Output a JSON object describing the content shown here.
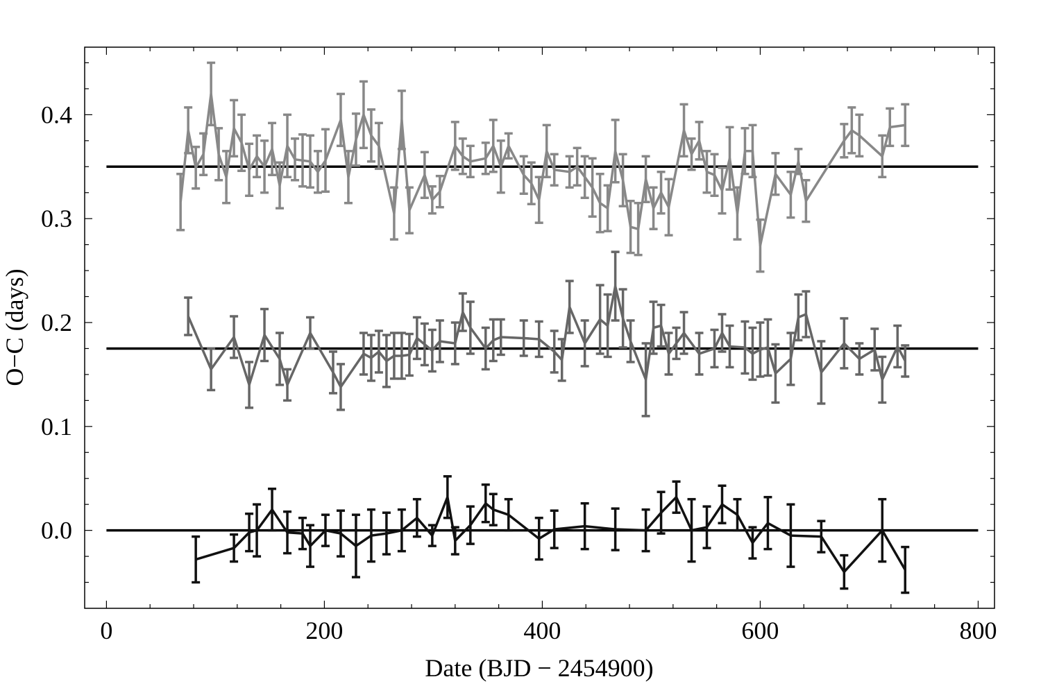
{
  "chart_data": {
    "type": "line",
    "title": "",
    "xlabel": "Date (BJD − 2454900)",
    "ylabel": "O−C (days)",
    "xlim": [
      -20,
      815
    ],
    "ylim": [
      -0.075,
      0.465
    ],
    "xticks": [
      0,
      200,
      400,
      600,
      800
    ],
    "xtick_labels": [
      "0",
      "200",
      "400",
      "600",
      "800"
    ],
    "yticks": [
      0.0,
      0.1,
      0.2,
      0.3,
      0.4
    ],
    "ytick_labels": [
      "0.0",
      "0.1",
      "0.2",
      "0.3",
      "0.4"
    ],
    "grid": false,
    "legend": "none",
    "reference_lines": [
      0.0,
      0.175,
      0.35
    ],
    "series": [
      {
        "color": "#888888",
        "x": [
          68,
          75,
          82,
          89,
          96,
          103,
          110,
          117,
          124,
          131,
          138,
          145,
          152,
          159,
          166,
          173,
          180,
          187,
          194,
          201,
          215,
          222,
          229,
          236,
          243,
          250,
          264,
          271,
          278,
          292,
          299,
          306,
          320,
          327,
          334,
          348,
          355,
          362,
          369,
          383,
          390,
          397,
          404,
          411,
          425,
          432,
          439,
          446,
          453,
          460,
          467,
          474,
          481,
          488,
          495,
          502,
          509,
          516,
          530,
          537,
          544,
          551,
          558,
          565,
          572,
          579,
          586,
          593,
          600,
          614,
          628,
          635,
          642,
          677,
          684,
          691,
          712,
          719,
          733
        ],
        "y": [
          0.316,
          0.385,
          0.349,
          0.362,
          0.42,
          0.362,
          0.34,
          0.387,
          0.373,
          0.347,
          0.36,
          0.35,
          0.367,
          0.332,
          0.37,
          0.357,
          0.356,
          0.355,
          0.345,
          0.356,
          0.395,
          0.34,
          0.376,
          0.4,
          0.38,
          0.37,
          0.305,
          0.395,
          0.308,
          0.342,
          0.318,
          0.326,
          0.37,
          0.36,
          0.355,
          0.358,
          0.37,
          0.35,
          0.37,
          0.342,
          0.334,
          0.318,
          0.365,
          0.347,
          0.345,
          0.35,
          0.34,
          0.33,
          0.315,
          0.31,
          0.365,
          0.337,
          0.292,
          0.29,
          0.338,
          0.31,
          0.325,
          0.311,
          0.385,
          0.362,
          0.375,
          0.345,
          0.342,
          0.327,
          0.358,
          0.305,
          0.365,
          0.365,
          0.274,
          0.343,
          0.323,
          0.355,
          0.317,
          0.375,
          0.385,
          0.38,
          0.36,
          0.388,
          0.39
        ],
        "err": [
          0.027,
          0.022,
          0.02,
          0.02,
          0.03,
          0.025,
          0.025,
          0.027,
          0.027,
          0.025,
          0.02,
          0.025,
          0.025,
          0.022,
          0.03,
          0.02,
          0.025,
          0.025,
          0.02,
          0.03,
          0.025,
          0.025,
          0.025,
          0.032,
          0.025,
          0.022,
          0.025,
          0.028,
          0.022,
          0.022,
          0.013,
          0.015,
          0.023,
          0.017,
          0.015,
          0.015,
          0.025,
          0.025,
          0.012,
          0.018,
          0.02,
          0.022,
          0.025,
          0.015,
          0.015,
          0.018,
          0.02,
          0.028,
          0.028,
          0.022,
          0.03,
          0.025,
          0.025,
          0.025,
          0.022,
          0.02,
          0.02,
          0.027,
          0.025,
          0.015,
          0.018,
          0.02,
          0.02,
          0.022,
          0.03,
          0.025,
          0.022,
          0.025,
          0.025,
          0.02,
          0.022,
          0.012,
          0.02,
          0.016,
          0.022,
          0.02,
          0.02,
          0.018,
          0.02
        ]
      },
      {
        "color": "#666666",
        "x": [
          75,
          96,
          117,
          131,
          145,
          159,
          166,
          187,
          208,
          215,
          236,
          243,
          250,
          257,
          264,
          271,
          278,
          285,
          292,
          299,
          306,
          320,
          327,
          334,
          348,
          355,
          362,
          383,
          397,
          411,
          418,
          425,
          439,
          453,
          460,
          467,
          474,
          481,
          495,
          502,
          509,
          516,
          523,
          530,
          544,
          558,
          565,
          572,
          586,
          593,
          600,
          607,
          614,
          628,
          635,
          642,
          656,
          677,
          691,
          705,
          712,
          726,
          733
        ],
        "y": [
          0.206,
          0.155,
          0.186,
          0.14,
          0.188,
          0.165,
          0.14,
          0.19,
          0.152,
          0.138,
          0.17,
          0.166,
          0.172,
          0.163,
          0.168,
          0.168,
          0.169,
          0.185,
          0.179,
          0.173,
          0.182,
          0.18,
          0.21,
          0.195,
          0.175,
          0.183,
          0.186,
          0.185,
          0.184,
          0.172,
          0.164,
          0.215,
          0.18,
          0.203,
          0.197,
          0.235,
          0.204,
          0.182,
          0.145,
          0.195,
          0.197,
          0.17,
          0.18,
          0.19,
          0.17,
          0.175,
          0.19,
          0.177,
          0.176,
          0.17,
          0.174,
          0.176,
          0.151,
          0.165,
          0.205,
          0.208,
          0.152,
          0.18,
          0.165,
          0.174,
          0.145,
          0.177,
          0.163
        ],
        "err": [
          0.018,
          0.02,
          0.02,
          0.022,
          0.025,
          0.025,
          0.015,
          0.015,
          0.02,
          0.022,
          0.02,
          0.022,
          0.02,
          0.025,
          0.022,
          0.022,
          0.02,
          0.02,
          0.02,
          0.02,
          0.02,
          0.02,
          0.018,
          0.025,
          0.02,
          0.02,
          0.017,
          0.017,
          0.017,
          0.02,
          0.02,
          0.025,
          0.022,
          0.033,
          0.03,
          0.033,
          0.028,
          0.02,
          0.035,
          0.025,
          0.02,
          0.02,
          0.015,
          0.02,
          0.02,
          0.018,
          0.018,
          0.02,
          0.025,
          0.025,
          0.026,
          0.027,
          0.028,
          0.025,
          0.022,
          0.022,
          0.03,
          0.024,
          0.015,
          0.02,
          0.022,
          0.02,
          0.015
        ]
      },
      {
        "color": "#111111",
        "x": [
          82,
          117,
          131,
          138,
          152,
          166,
          180,
          187,
          201,
          215,
          229,
          243,
          257,
          271,
          285,
          299,
          313,
          320,
          334,
          348,
          355,
          369,
          397,
          411,
          439,
          467,
          495,
          509,
          523,
          537,
          551,
          565,
          579,
          593,
          607,
          628,
          656,
          677,
          712,
          733
        ],
        "y": [
          -0.028,
          -0.017,
          -0.002,
          0.0,
          0.02,
          -0.002,
          -0.003,
          -0.015,
          0.0,
          -0.003,
          -0.015,
          -0.005,
          -0.003,
          0.0,
          0.012,
          -0.005,
          0.032,
          -0.01,
          0.005,
          0.026,
          0.02,
          0.015,
          -0.008,
          0.001,
          0.004,
          0.001,
          0.0,
          0.017,
          0.032,
          0.0,
          0.003,
          0.025,
          0.015,
          -0.012,
          0.007,
          -0.005,
          -0.006,
          -0.04,
          0.0,
          -0.038
        ],
        "err": [
          0.022,
          0.013,
          0.018,
          0.025,
          0.02,
          0.02,
          0.015,
          0.02,
          0.015,
          0.022,
          0.03,
          0.025,
          0.02,
          0.02,
          0.018,
          0.01,
          0.02,
          0.013,
          0.018,
          0.018,
          0.015,
          0.015,
          0.02,
          0.018,
          0.022,
          0.02,
          0.02,
          0.02,
          0.015,
          0.03,
          0.02,
          0.018,
          0.015,
          0.015,
          0.025,
          0.03,
          0.015,
          0.016,
          0.03,
          0.022
        ]
      }
    ]
  }
}
